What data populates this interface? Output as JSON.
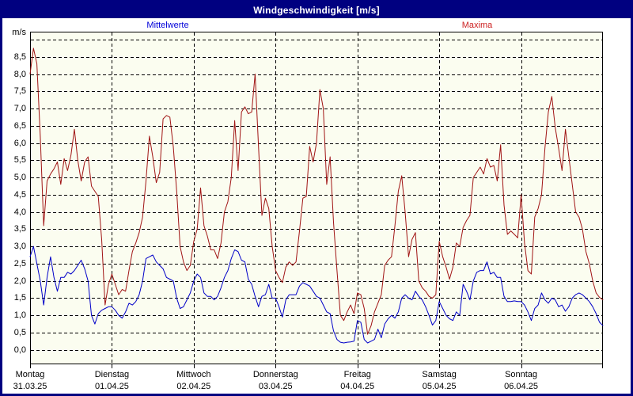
{
  "window": {
    "title": "Windgeschwindigkeit [m/s]"
  },
  "legend": {
    "mean_label": "Mittelwerte",
    "max_label": "Maxima"
  },
  "colors": {
    "frame": "#000080",
    "title_bg": "#000080",
    "title_fg": "#ffffff",
    "plot_bg": "#fbfdf0",
    "grid": "#000000",
    "mean_line": "#0000c8",
    "max_line": "#a01414",
    "legend_mean": "#0000d8",
    "legend_max": "#cc2020"
  },
  "y_axis": {
    "unit_label": "m/s",
    "tick_labels": [
      "0,0",
      "0,5",
      "1,0",
      "1,5",
      "2,0",
      "2,5",
      "3,0",
      "3,5",
      "4,0",
      "4,5",
      "5,0",
      "5,5",
      "6,0",
      "6,5",
      "7,0",
      "7,5",
      "8,0",
      "8,5"
    ],
    "tick_step": 0.5
  },
  "x_axis": {
    "days": [
      {
        "weekday": "Montag",
        "date": "31.03.25"
      },
      {
        "weekday": "Dienstag",
        "date": "01.04.25"
      },
      {
        "weekday": "Mittwoch",
        "date": "02.04.25"
      },
      {
        "weekday": "Donnerstag",
        "date": "03.04.25"
      },
      {
        "weekday": "Freitag",
        "date": "04.04.25"
      },
      {
        "weekday": "Samstag",
        "date": "05.04.25"
      },
      {
        "weekday": "Sonntag",
        "date": "06.04.25"
      }
    ]
  },
  "chart_data": {
    "type": "line",
    "title": "Windgeschwindigkeit [m/s]",
    "ylabel": "m/s",
    "x_unit": "hours from Montag 31.03.25 00:00 to Montag 07.04.25 00:00",
    "x_range_hours": [
      0,
      168
    ],
    "ylim": [
      -0.42,
      9.23
    ],
    "y_gridlines": [
      0,
      0.5,
      1,
      1.5,
      2,
      2.5,
      3,
      3.5,
      4,
      4.5,
      5,
      5.5,
      6,
      6.5,
      7,
      7.5,
      8,
      8.5,
      9
    ],
    "grid": true,
    "legend_position": "top",
    "categories_days": [
      "Montag 31.03.25",
      "Dienstag 01.04.25",
      "Mittwoch 02.04.25",
      "Donnerstag 03.04.25",
      "Freitag 04.04.25",
      "Samstag 05.04.25",
      "Sonntag 06.04.25"
    ],
    "series": [
      {
        "name": "Mittelwerte",
        "color": "#0000c8",
        "values": [
          2.7,
          3.0,
          2.5,
          2.0,
          1.3,
          2.1,
          2.7,
          2.1,
          1.7,
          2.1,
          2.1,
          2.25,
          2.2,
          2.3,
          2.45,
          2.6,
          2.35,
          2.0,
          1.0,
          0.75,
          1.05,
          1.15,
          1.2,
          1.25,
          1.25,
          1.15,
          1.0,
          0.92,
          1.1,
          1.35,
          1.3,
          1.4,
          1.6,
          2.0,
          2.65,
          2.7,
          2.75,
          2.55,
          2.45,
          2.35,
          2.1,
          2.05,
          2.0,
          1.5,
          1.2,
          1.25,
          1.45,
          1.65,
          2.0,
          2.2,
          2.1,
          1.65,
          1.55,
          1.55,
          1.45,
          1.55,
          1.8,
          2.1,
          2.3,
          2.65,
          2.9,
          2.85,
          2.6,
          2.55,
          2.05,
          1.9,
          1.55,
          1.25,
          1.55,
          1.6,
          1.9,
          1.5,
          1.5,
          1.25,
          0.95,
          1.45,
          1.6,
          1.6,
          1.6,
          1.85,
          1.95,
          1.9,
          1.85,
          1.7,
          1.55,
          1.5,
          1.3,
          1.1,
          1.05,
          0.55,
          0.3,
          0.22,
          0.2,
          0.22,
          0.23,
          0.25,
          0.85,
          0.8,
          0.3,
          0.2,
          0.25,
          0.3,
          0.6,
          0.35,
          0.75,
          0.9,
          1.0,
          0.92,
          1.1,
          1.5,
          1.6,
          1.5,
          1.45,
          1.7,
          1.55,
          1.45,
          1.25,
          1.0,
          0.72,
          0.85,
          1.4,
          1.2,
          1.0,
          0.9,
          0.85,
          1.1,
          1.0,
          1.9,
          1.7,
          1.45,
          2.0,
          2.25,
          2.3,
          2.3,
          2.55,
          2.2,
          2.25,
          2.1,
          2.1,
          1.55,
          1.4,
          1.4,
          1.42,
          1.4,
          1.4,
          1.3,
          1.1,
          0.85,
          1.2,
          1.3,
          1.65,
          1.45,
          1.35,
          1.5,
          1.45,
          1.25,
          1.3,
          1.12,
          1.25,
          1.5,
          1.6,
          1.65,
          1.6,
          1.5,
          1.4,
          1.25,
          1.05,
          0.8,
          0.7
        ]
      },
      {
        "name": "Maxima",
        "color": "#a01414",
        "values": [
          8.0,
          8.75,
          8.3,
          6.2,
          3.6,
          4.9,
          5.1,
          5.25,
          5.45,
          4.8,
          5.55,
          5.2,
          5.65,
          6.4,
          5.5,
          4.9,
          5.45,
          5.6,
          4.75,
          4.6,
          4.45,
          3.2,
          1.3,
          1.9,
          2.2,
          1.9,
          1.6,
          1.75,
          1.7,
          2.3,
          2.85,
          3.1,
          3.4,
          3.85,
          4.9,
          6.2,
          5.6,
          4.85,
          5.15,
          6.7,
          6.8,
          6.75,
          5.9,
          4.6,
          3.0,
          2.55,
          2.3,
          2.45,
          3.15,
          3.5,
          4.7,
          3.6,
          3.3,
          2.9,
          2.9,
          2.65,
          3.1,
          4.0,
          4.3,
          5.0,
          6.65,
          5.2,
          6.9,
          7.05,
          6.85,
          6.9,
          8.0,
          5.9,
          3.9,
          4.4,
          4.1,
          3.0,
          2.3,
          2.1,
          1.95,
          2.4,
          2.55,
          2.45,
          2.55,
          3.45,
          4.4,
          4.45,
          5.9,
          5.45,
          6.0,
          7.55,
          7.0,
          4.8,
          5.6,
          3.7,
          2.3,
          1.0,
          0.85,
          1.1,
          1.3,
          1.05,
          1.65,
          1.6,
          1.2,
          0.45,
          0.7,
          1.1,
          1.35,
          1.6,
          2.45,
          2.6,
          2.7,
          3.6,
          4.6,
          5.05,
          4.0,
          2.7,
          3.2,
          3.4,
          2.0,
          1.8,
          1.7,
          1.55,
          1.5,
          1.6,
          3.15,
          2.7,
          2.4,
          2.05,
          2.4,
          3.1,
          3.0,
          3.55,
          3.75,
          3.9,
          5.0,
          5.15,
          5.3,
          5.1,
          5.55,
          5.3,
          5.35,
          4.9,
          5.95,
          4.2,
          3.35,
          3.45,
          3.35,
          3.25,
          4.5,
          3.1,
          2.3,
          2.2,
          3.85,
          4.1,
          4.5,
          5.85,
          6.9,
          7.35,
          6.45,
          5.85,
          5.2,
          6.4,
          5.6,
          4.8,
          4.0,
          3.85,
          3.5,
          2.85,
          2.5,
          2.0,
          1.65,
          1.52,
          1.45
        ]
      }
    ]
  }
}
